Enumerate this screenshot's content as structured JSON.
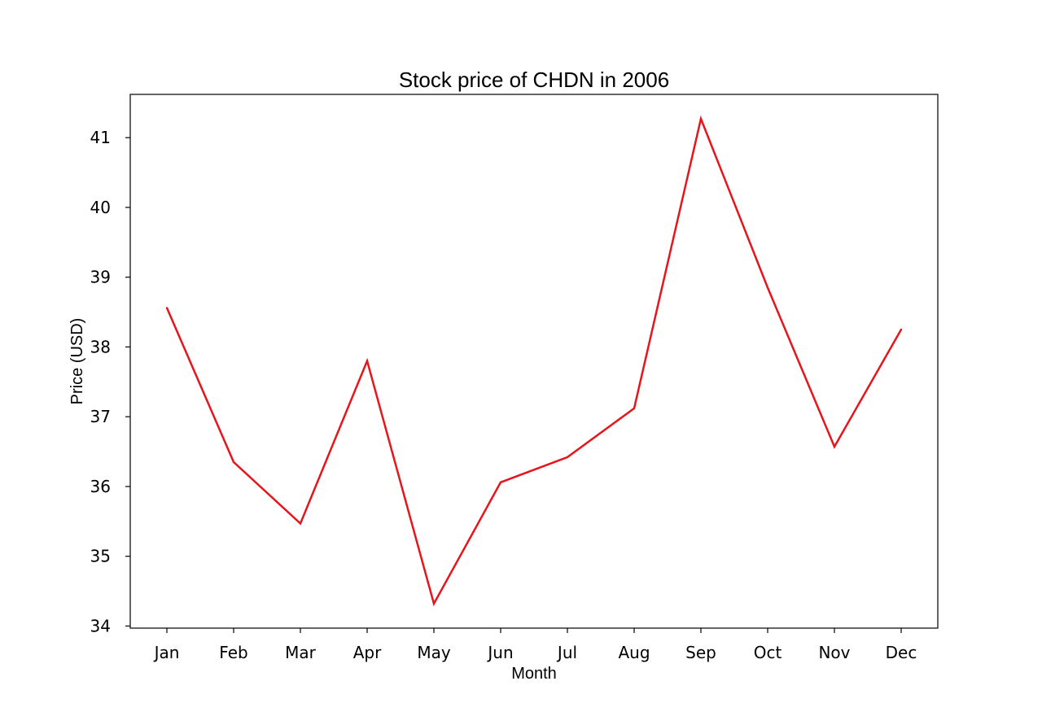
{
  "chart_data": {
    "type": "line",
    "title": "Stock price of CHDN in 2006",
    "xlabel": "Month",
    "ylabel": "Price (USD)",
    "categories": [
      "Jan",
      "Feb",
      "Mar",
      "Apr",
      "May",
      "Jun",
      "Jul",
      "Aug",
      "Sep",
      "Oct",
      "Nov",
      "Dec"
    ],
    "series": [
      {
        "values": [
          38.56,
          36.35,
          35.47,
          37.8,
          34.32,
          36.06,
          36.42,
          37.12,
          41.27,
          38.85,
          36.57,
          38.25
        ],
        "color": "#e8141c"
      }
    ],
    "yticks": [
      34,
      35,
      36,
      37,
      38,
      39,
      40,
      41
    ],
    "ylim": [
      33.97,
      41.62
    ],
    "grid": false,
    "legend": "none"
  }
}
